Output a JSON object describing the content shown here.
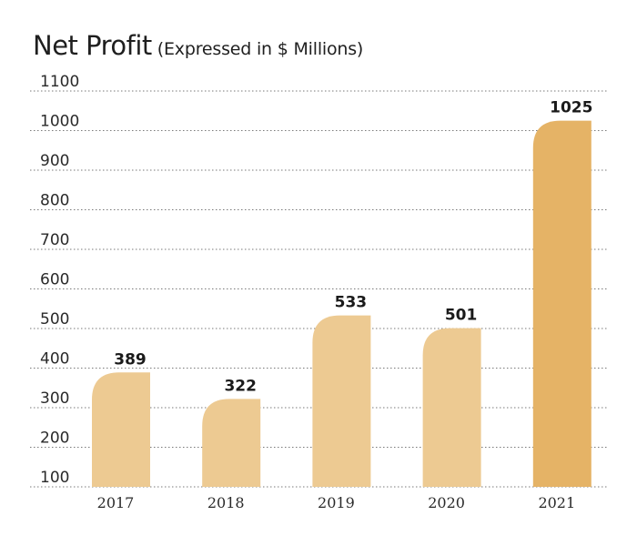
{
  "chart_data": {
    "type": "bar",
    "title": "Net Profit",
    "subtitle": "(Expressed in $ Millions)",
    "xlabel": "",
    "ylabel": "",
    "categories": [
      "2017",
      "2018",
      "2019",
      "2020",
      "2021"
    ],
    "values": [
      389,
      322,
      533,
      501,
      1025
    ],
    "ylim": [
      100,
      1100
    ],
    "yticks": [
      100,
      200,
      300,
      400,
      500,
      600,
      700,
      800,
      900,
      1000,
      1100
    ],
    "grid": true,
    "gridStyle": "dotted",
    "legend": "none",
    "colors": {
      "bar": "#EDCA92",
      "highlight": "#E5B366",
      "grid": "#7a7a7a",
      "text": "#1f1f1f"
    },
    "highlightIndex": 4
  }
}
